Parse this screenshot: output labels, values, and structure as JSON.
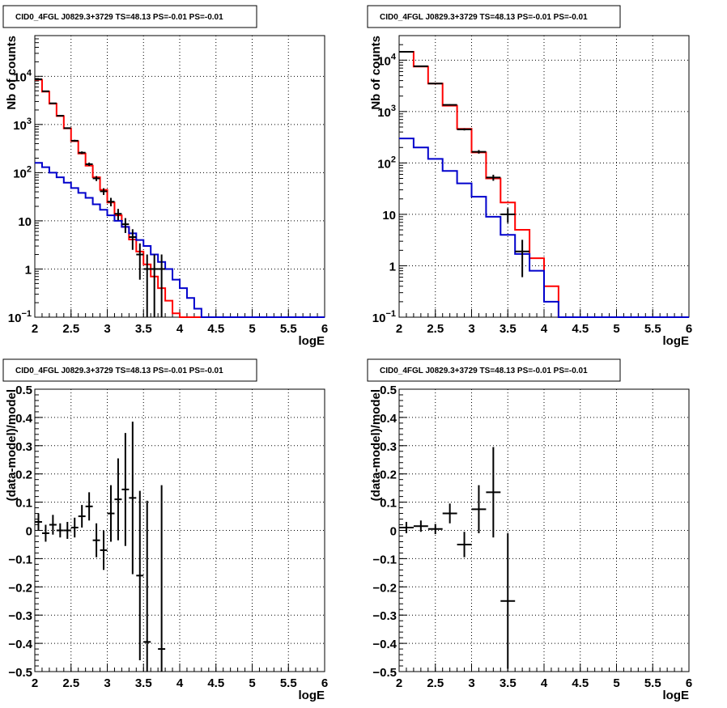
{
  "chart_data": [
    {
      "id": "top-left",
      "type": "line",
      "title": "CID0_4FGL J0829.3+3729 TS=48.13 PS=-0.01 PS=-0.01",
      "xlabel": "logE",
      "ylabel": "Nb of counts",
      "yscale": "log",
      "xlim": [
        2,
        6
      ],
      "ylim": [
        0.1,
        70000
      ],
      "grid": true,
      "x_ticks": [
        "2",
        "2.5",
        "3",
        "3.5",
        "4",
        "4.5",
        "5",
        "5.5",
        "6"
      ],
      "y_ticks": [
        {
          "value": 10000,
          "base": "10",
          "exp": "4"
        },
        {
          "value": 1000,
          "base": "10",
          "exp": "3"
        },
        {
          "value": 100,
          "base": "10",
          "exp": "2"
        },
        {
          "value": 10,
          "base": "10",
          "exp": ""
        },
        {
          "value": 1,
          "base": "1",
          "exp": ""
        },
        {
          "value": 0.1,
          "base": "10",
          "exp": "−1"
        }
      ],
      "bin_edges": [
        2.0,
        2.1,
        2.2,
        2.3,
        2.4,
        2.5,
        2.6,
        2.7,
        2.8,
        2.9,
        3.0,
        3.1,
        3.2,
        3.3,
        3.4,
        3.5,
        3.6,
        3.7,
        3.8,
        3.9,
        4.0,
        4.1,
        4.2,
        4.3,
        4.4,
        4.5,
        4.6,
        4.7,
        4.8,
        4.9,
        5.0,
        5.1,
        5.2,
        5.3,
        5.4,
        5.5,
        5.6,
        5.7,
        5.8,
        5.9,
        6.0
      ],
      "series": [
        {
          "role": "model",
          "color": "#ff0000",
          "values": [
            8500,
            4800,
            2700,
            1500,
            830,
            450,
            250,
            140,
            80,
            44,
            24,
            13,
            7.5,
            4.1,
            2.3,
            1.25,
            0.7,
            0.4,
            0.22,
            0.12,
            0.1,
            0.1,
            0.1,
            0.1,
            0.1,
            0.1,
            0.1,
            0.1,
            0.1,
            0.1,
            0.1,
            0.1,
            0.1,
            0.1,
            0.1,
            0.1,
            0.1,
            0.1,
            0.1,
            0.1
          ]
        },
        {
          "role": "background",
          "color": "#0000cc",
          "values": [
            160,
            130,
            100,
            80,
            62,
            48,
            38,
            30,
            22,
            17,
            13,
            10,
            7.5,
            5.5,
            4,
            3,
            2,
            1.4,
            1,
            0.6,
            0.4,
            0.25,
            0.15,
            0.1,
            0.1,
            0.1,
            0.1,
            0.1,
            0.1,
            0.1,
            0.1,
            0.1,
            0.1,
            0.1,
            0.1,
            0.1,
            0.1,
            0.1,
            0.1,
            0.1
          ]
        }
      ],
      "points": [
        {
          "x": 2.05,
          "y": 8700,
          "err": 93
        },
        {
          "x": 2.15,
          "y": 4900,
          "err": 70
        },
        {
          "x": 2.25,
          "y": 2750,
          "err": 52
        },
        {
          "x": 2.35,
          "y": 1520,
          "err": 39
        },
        {
          "x": 2.45,
          "y": 840,
          "err": 29
        },
        {
          "x": 2.55,
          "y": 460,
          "err": 21
        },
        {
          "x": 2.65,
          "y": 260,
          "err": 16
        },
        {
          "x": 2.75,
          "y": 150,
          "err": 12
        },
        {
          "x": 2.85,
          "y": 76,
          "err": 9
        },
        {
          "x": 2.95,
          "y": 41,
          "err": 6.5
        },
        {
          "x": 3.05,
          "y": 25,
          "err": 5
        },
        {
          "x": 3.15,
          "y": 14,
          "err": 3.7
        },
        {
          "x": 3.25,
          "y": 8.5,
          "err": 2.9
        },
        {
          "x": 3.35,
          "y": 4.6,
          "err": 2.1
        },
        {
          "x": 3.45,
          "y": 2,
          "err": 1.4
        },
        {
          "x": 3.55,
          "y": 1.0,
          "err": 1.0
        },
        {
          "x": 3.65,
          "y": 1.0,
          "err": 1.0
        },
        {
          "x": 3.75,
          "y": 1.0,
          "err": 1.0
        }
      ]
    },
    {
      "id": "top-right",
      "type": "line",
      "title": "CID0_4FGL J0829.3+3729 TS=48.13 PS=-0.01 PS=-0.01",
      "xlabel": "logE",
      "ylabel": "Nb of counts",
      "yscale": "log",
      "xlim": [
        2,
        6
      ],
      "ylim": [
        0.1,
        30000
      ],
      "grid": true,
      "x_ticks": [
        "2",
        "2.5",
        "3",
        "3.5",
        "4",
        "4.5",
        "5",
        "5.5",
        "6"
      ],
      "y_ticks": [
        {
          "value": 10000,
          "base": "10",
          "exp": "4"
        },
        {
          "value": 1000,
          "base": "10",
          "exp": "3"
        },
        {
          "value": 100,
          "base": "10",
          "exp": "2"
        },
        {
          "value": 10,
          "base": "10",
          "exp": ""
        },
        {
          "value": 1,
          "base": "1",
          "exp": ""
        },
        {
          "value": 0.1,
          "base": "10",
          "exp": "−1"
        }
      ],
      "bin_edges": [
        2.0,
        2.2,
        2.4,
        2.6,
        2.8,
        3.0,
        3.2,
        3.4,
        3.6,
        3.8,
        4.0,
        4.2,
        4.4,
        4.6,
        4.8,
        5.0,
        5.2,
        5.4,
        5.6,
        5.8,
        6.0
      ],
      "series": [
        {
          "role": "model",
          "color": "#ff0000",
          "values": [
            14500,
            7500,
            3500,
            1300,
            460,
            160,
            50,
            17,
            5,
            1.4,
            0.4,
            0.1,
            0.1,
            0.1,
            0.1,
            0.1,
            0.1,
            0.1,
            0.1,
            0.1
          ]
        },
        {
          "role": "background",
          "color": "#0000cc",
          "values": [
            300,
            200,
            120,
            70,
            40,
            22,
            9,
            4,
            1.7,
            0.8,
            0.2,
            0.1,
            0.1,
            0.1,
            0.1,
            0.1,
            0.1,
            0.1,
            0.1,
            0.1
          ]
        }
      ],
      "points": [
        {
          "x": 2.1,
          "y": 14500,
          "err": 120
        },
        {
          "x": 2.3,
          "y": 7600,
          "err": 87
        },
        {
          "x": 2.5,
          "y": 3500,
          "err": 59
        },
        {
          "x": 2.7,
          "y": 1350,
          "err": 37
        },
        {
          "x": 2.9,
          "y": 450,
          "err": 21
        },
        {
          "x": 3.1,
          "y": 165,
          "err": 13
        },
        {
          "x": 3.3,
          "y": 52,
          "err": 7
        },
        {
          "x": 3.5,
          "y": 10,
          "err": 3.2
        },
        {
          "x": 3.7,
          "y": 1.9,
          "err": 1.3
        }
      ]
    },
    {
      "id": "bottom-left",
      "type": "scatter",
      "title": "CID0_4FGL J0829.3+3729 TS=48.13 PS=-0.01 PS=-0.01",
      "xlabel": "logE",
      "ylabel": "(data-model)/model",
      "yscale": "linear",
      "xlim": [
        2,
        6
      ],
      "ylim": [
        -0.5,
        0.5
      ],
      "grid": true,
      "x_ticks": [
        "2",
        "2.5",
        "3",
        "3.5",
        "4",
        "4.5",
        "5",
        "5.5",
        "6"
      ],
      "y_ticks": [
        "0.5",
        "0.4",
        "0.3",
        "0.2",
        "0.1",
        "0",
        "−0.1",
        "−0.2",
        "−0.3",
        "−0.4",
        "−0.5"
      ],
      "xerr": 0.05,
      "points": [
        {
          "x": 2.05,
          "y": 0.03,
          "err": 0.03
        },
        {
          "x": 2.15,
          "y": -0.01,
          "err": 0.03
        },
        {
          "x": 2.25,
          "y": 0.02,
          "err": 0.035
        },
        {
          "x": 2.35,
          "y": 0.0,
          "err": 0.025
        },
        {
          "x": 2.45,
          "y": 0.0,
          "err": 0.03
        },
        {
          "x": 2.55,
          "y": 0.01,
          "err": 0.035
        },
        {
          "x": 2.65,
          "y": 0.05,
          "err": 0.04
        },
        {
          "x": 2.75,
          "y": 0.085,
          "err": 0.05
        },
        {
          "x": 2.85,
          "y": -0.035,
          "err": 0.06
        },
        {
          "x": 2.95,
          "y": -0.07,
          "err": 0.07
        },
        {
          "x": 3.05,
          "y": 0.06,
          "err": 0.1
        },
        {
          "x": 3.15,
          "y": 0.11,
          "err": 0.145
        },
        {
          "x": 3.25,
          "y": 0.145,
          "err": 0.2
        },
        {
          "x": 3.35,
          "y": 0.115,
          "err": 0.27
        },
        {
          "x": 3.45,
          "y": -0.16,
          "err": 0.3
        },
        {
          "x": 3.55,
          "y": -0.395,
          "err": 0.5
        },
        {
          "x": 3.75,
          "y": -0.42,
          "err": 0.58
        }
      ]
    },
    {
      "id": "bottom-right",
      "type": "scatter",
      "title": "CID0_4FGL J0829.3+3729 TS=48.13 PS=-0.01 PS=-0.01",
      "xlabel": "logE",
      "ylabel": "(data-model)/model",
      "yscale": "linear",
      "xlim": [
        2,
        6
      ],
      "ylim": [
        -0.5,
        0.5
      ],
      "grid": true,
      "x_ticks": [
        "2",
        "2.5",
        "3",
        "3.5",
        "4",
        "4.5",
        "5",
        "5.5",
        "6"
      ],
      "y_ticks": [
        "0.5",
        "0.4",
        "0.3",
        "0.2",
        "0.1",
        "0",
        "−0.1",
        "−0.2",
        "−0.3",
        "−0.4",
        "−0.5"
      ],
      "xerr": 0.1,
      "points": [
        {
          "x": 2.1,
          "y": 0.01,
          "err": 0.02
        },
        {
          "x": 2.3,
          "y": 0.015,
          "err": 0.02
        },
        {
          "x": 2.5,
          "y": 0.005,
          "err": 0.018
        },
        {
          "x": 2.7,
          "y": 0.06,
          "err": 0.035
        },
        {
          "x": 2.9,
          "y": -0.05,
          "err": 0.045
        },
        {
          "x": 3.1,
          "y": 0.075,
          "err": 0.085
        },
        {
          "x": 3.3,
          "y": 0.135,
          "err": 0.16
        },
        {
          "x": 3.5,
          "y": -0.25,
          "err": 0.24
        }
      ]
    }
  ]
}
